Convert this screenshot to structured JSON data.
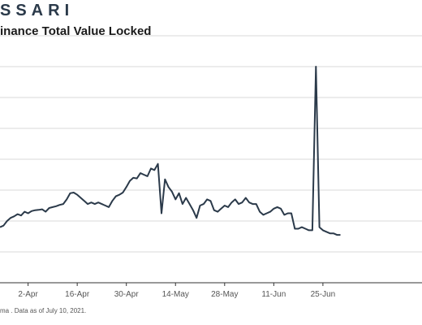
{
  "brand": "SSARI",
  "title": "inance Total Value Locked",
  "source": "ma . Data as of July 10, 2021.",
  "colors": {
    "line": "#2b3a4a",
    "grid": "#d8d8d8",
    "axis": "#333333"
  },
  "chart_data": {
    "type": "line",
    "title": "inance Total Value Locked",
    "xlabel": "",
    "ylabel": "",
    "grid": true,
    "legend": "none",
    "x_ticks": [
      "2-Apr",
      "16-Apr",
      "30-Apr",
      "14-May",
      "28-May",
      "11-Jun",
      "25-Jun"
    ],
    "ylim": [
      0,
      8
    ],
    "series": [
      {
        "x": [
          "2021-03-25",
          "2021-03-26",
          "2021-03-27",
          "2021-03-28",
          "2021-03-29",
          "2021-03-30",
          "2021-03-31",
          "2021-04-01",
          "2021-04-02",
          "2021-04-03",
          "2021-04-04",
          "2021-04-05",
          "2021-04-06",
          "2021-04-07",
          "2021-04-08",
          "2021-04-09",
          "2021-04-10",
          "2021-04-11",
          "2021-04-12",
          "2021-04-13",
          "2021-04-14",
          "2021-04-15",
          "2021-04-16",
          "2021-04-17",
          "2021-04-18",
          "2021-04-19",
          "2021-04-20",
          "2021-04-21",
          "2021-04-22",
          "2021-04-23",
          "2021-04-24",
          "2021-04-25",
          "2021-04-26",
          "2021-04-27",
          "2021-04-28",
          "2021-04-29",
          "2021-04-30",
          "2021-05-01",
          "2021-05-02",
          "2021-05-03",
          "2021-05-04",
          "2021-05-05",
          "2021-05-06",
          "2021-05-07",
          "2021-05-08",
          "2021-05-09",
          "2021-05-10",
          "2021-05-11",
          "2021-05-12",
          "2021-05-13",
          "2021-05-14",
          "2021-05-15",
          "2021-05-16",
          "2021-05-17",
          "2021-05-18",
          "2021-05-19",
          "2021-05-20",
          "2021-05-21",
          "2021-05-22",
          "2021-05-23",
          "2021-05-24",
          "2021-05-25",
          "2021-05-26",
          "2021-05-27",
          "2021-05-28",
          "2021-05-29",
          "2021-05-30",
          "2021-05-31",
          "2021-06-01",
          "2021-06-02",
          "2021-06-03",
          "2021-06-04",
          "2021-06-05",
          "2021-06-06",
          "2021-06-07",
          "2021-06-08",
          "2021-06-09",
          "2021-06-10",
          "2021-06-11",
          "2021-06-12",
          "2021-06-13",
          "2021-06-14",
          "2021-06-15",
          "2021-06-16",
          "2021-06-17",
          "2021-06-18",
          "2021-06-19",
          "2021-06-20",
          "2021-06-21",
          "2021-06-22",
          "2021-06-23",
          "2021-06-24",
          "2021-06-25",
          "2021-06-26",
          "2021-06-27",
          "2021-06-28",
          "2021-06-29",
          "2021-06-30"
        ],
        "values": [
          1.8,
          1.85,
          2.0,
          2.1,
          2.15,
          2.22,
          2.18,
          2.3,
          2.25,
          2.32,
          2.35,
          2.36,
          2.38,
          2.3,
          2.42,
          2.45,
          2.48,
          2.52,
          2.55,
          2.7,
          2.9,
          2.92,
          2.85,
          2.75,
          2.65,
          2.55,
          2.6,
          2.55,
          2.6,
          2.55,
          2.5,
          2.45,
          2.65,
          2.8,
          2.85,
          2.92,
          3.1,
          3.3,
          3.4,
          3.38,
          3.55,
          3.5,
          3.45,
          3.7,
          3.65,
          3.85,
          2.25,
          3.35,
          3.1,
          2.95,
          2.7,
          2.9,
          2.55,
          2.75,
          2.55,
          2.35,
          2.1,
          2.5,
          2.55,
          2.7,
          2.65,
          2.35,
          2.3,
          2.4,
          2.5,
          2.45,
          2.6,
          2.7,
          2.55,
          2.6,
          2.75,
          2.6,
          2.55,
          2.55,
          2.3,
          2.2,
          2.25,
          2.3,
          2.4,
          2.45,
          2.4,
          2.2,
          2.25,
          2.25,
          1.75,
          1.75,
          1.8,
          1.75,
          1.7,
          1.7,
          7.0,
          1.8,
          1.7,
          1.65,
          1.6,
          1.6,
          1.55,
          1.55
        ]
      }
    ]
  }
}
